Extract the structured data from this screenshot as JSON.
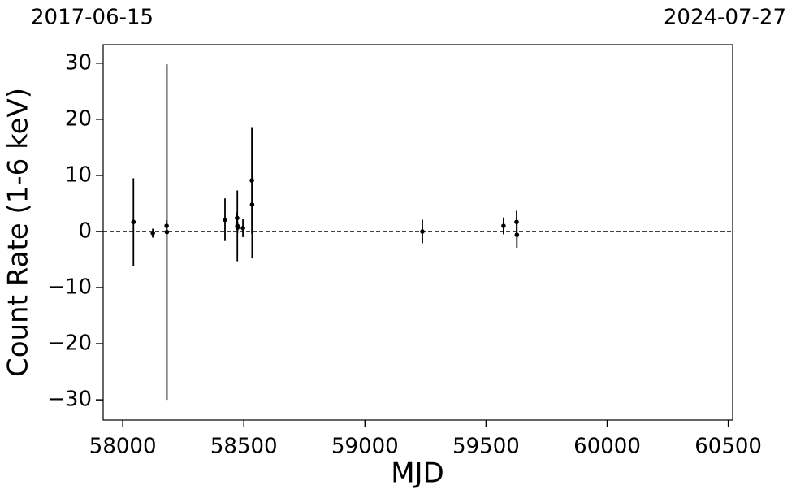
{
  "chart_data": {
    "type": "errorbar",
    "top_left_label": "2017-06-15",
    "top_right_label": "2024-07-27",
    "xlabel": "MJD",
    "ylabel": "Count Rate (1-6 keV)",
    "x": [
      58044,
      58124,
      58181,
      58182,
      58422,
      58472,
      58473,
      58474,
      58496,
      58533,
      58534,
      59237,
      59572,
      59626,
      59627
    ],
    "values": [
      1.7,
      -0.3,
      1.0,
      -0.1,
      2.1,
      2.4,
      1.0,
      0.7,
      0.6,
      9.1,
      4.8,
      0.0,
      1.0,
      1.7,
      -0.6
    ],
    "errors": [
      7.8,
      0.8,
      1.0,
      29.9,
      3.8,
      1.0,
      6.3,
      1.0,
      1.6,
      9.5,
      9.6,
      2.1,
      1.5,
      2.0,
      2.3
    ],
    "color": "#000000",
    "reference_line": 0,
    "xlim": [
      57919,
      60518
    ],
    "ylim": [
      -33.6,
      33.3
    ],
    "xticks": [
      58000,
      58500,
      59000,
      59500,
      60000,
      60500
    ],
    "yticks": [
      {
        "value": -30,
        "label": "−30"
      },
      {
        "value": -20,
        "label": "−20"
      },
      {
        "value": -10,
        "label": "−10"
      },
      0,
      10,
      20,
      30
    ]
  }
}
